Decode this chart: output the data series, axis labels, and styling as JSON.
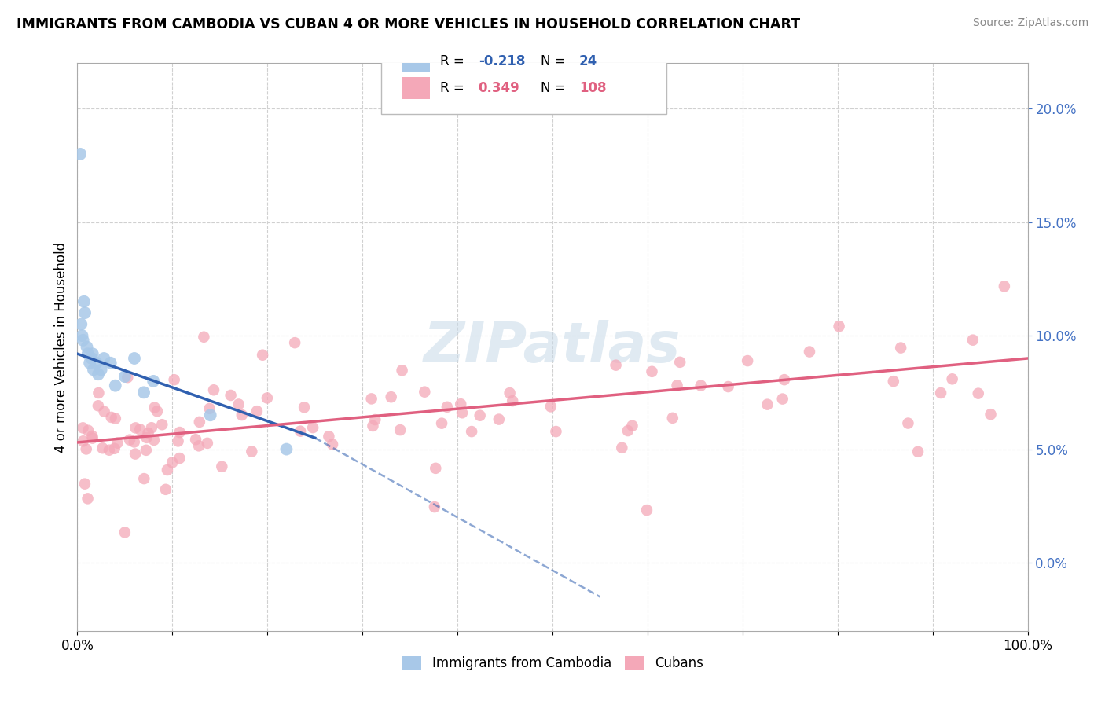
{
  "title": "IMMIGRANTS FROM CAMBODIA VS CUBAN 4 OR MORE VEHICLES IN HOUSEHOLD CORRELATION CHART",
  "source": "Source: ZipAtlas.com",
  "ylabel": "4 or more Vehicles in Household",
  "xlim": [
    0,
    100
  ],
  "ylim": [
    -3,
    22
  ],
  "yticks": [
    0,
    5,
    10,
    15,
    20
  ],
  "ytick_labels": [
    "0.0%",
    "5.0%",
    "10.0%",
    "15.0%",
    "20.0%"
  ],
  "xtick_labels": [
    "0.0%",
    "100.0%"
  ],
  "legend_r_cambodia": "-0.218",
  "legend_n_cambodia": "24",
  "legend_r_cuban": "0.349",
  "legend_n_cuban": "108",
  "color_cambodia": "#a8c8e8",
  "color_cuban": "#f4a8b8",
  "line_color_cambodia": "#3060b0",
  "line_color_cuban": "#e06080",
  "background_color": "#ffffff",
  "grid_color": "#d0d0d0",
  "watermark_color": "#c8dae8",
  "camb_line_x0": 0,
  "camb_line_y0": 9.2,
  "camb_line_x1": 25,
  "camb_line_y1": 5.5,
  "cuban_line_x0": 0,
  "cuban_line_y0": 5.3,
  "cuban_line_x1": 100,
  "cuban_line_y1": 9.0,
  "dash_line_x0": 25,
  "dash_line_y0": 5.5,
  "dash_line_x1": 55,
  "dash_line_y1": -1.5
}
